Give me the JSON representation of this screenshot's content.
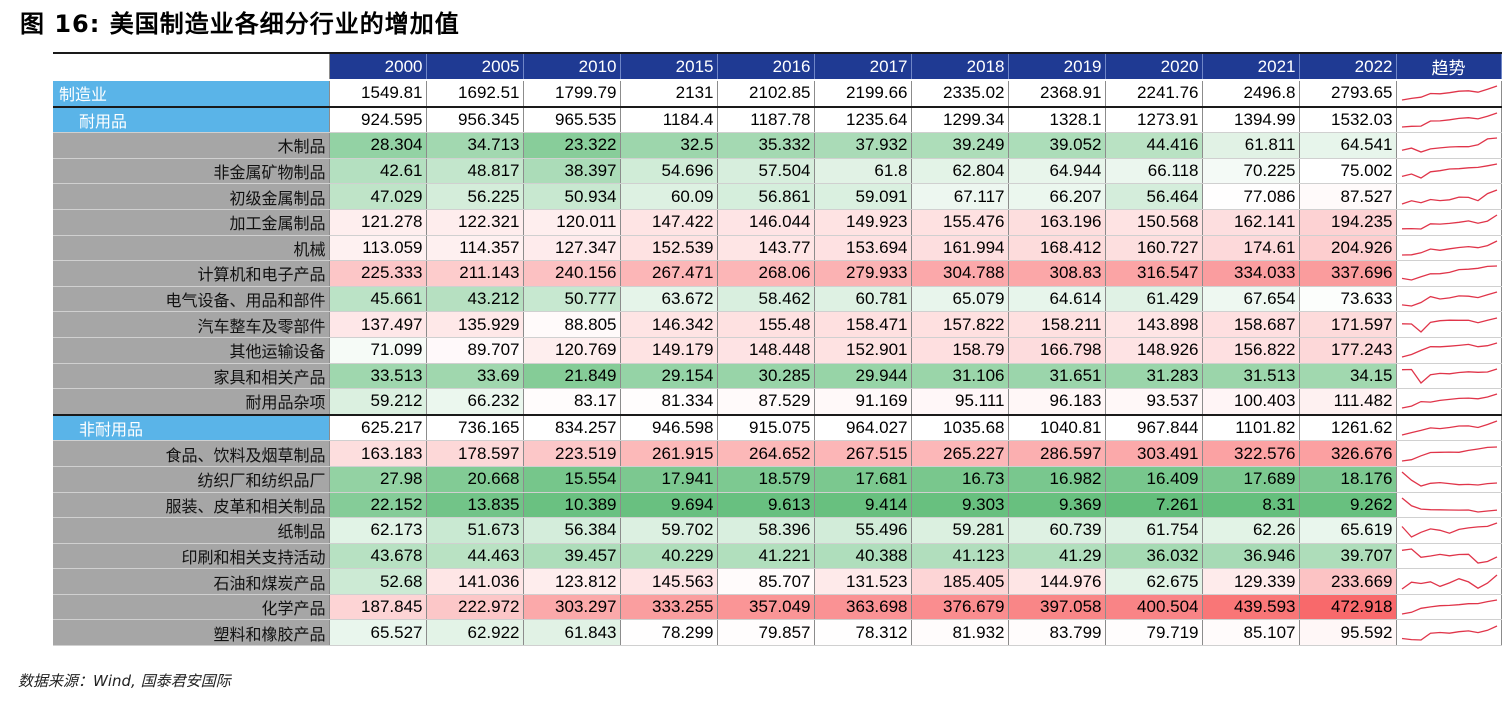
{
  "title": "图 16: 美国制造业各细分行业的增加值",
  "source": "数据来源：Wind, 国泰君安国际",
  "chart_data": {
    "type": "table",
    "columns": [
      "2000",
      "2005",
      "2010",
      "2015",
      "2016",
      "2017",
      "2018",
      "2019",
      "2020",
      "2021",
      "2022"
    ],
    "trend_header": "趋势",
    "sparkline_color": "#e0354a",
    "heat_colors": {
      "low": "#63be7b",
      "mid": "#ffffff",
      "high": "#f8696b"
    },
    "rows": [
      {
        "label": "制造业",
        "level": "sector1",
        "values": [
          "1549.81",
          "1692.51",
          "1799.79",
          "2131",
          "2102.85",
          "2199.66",
          "2335.02",
          "2368.91",
          "2241.76",
          "2496.8",
          "2793.65"
        ]
      },
      {
        "label": "耐用品",
        "level": "sector2",
        "values": [
          "924.595",
          "956.345",
          "965.535",
          "1184.4",
          "1187.78",
          "1235.64",
          "1299.34",
          "1328.1",
          "1273.91",
          "1394.99",
          "1532.03"
        ]
      },
      {
        "label": "木制品",
        "level": "sub",
        "values": [
          "28.304",
          "34.713",
          "23.322",
          "32.5",
          "35.332",
          "37.932",
          "39.249",
          "39.052",
          "44.416",
          "61.811",
          "64.541"
        ]
      },
      {
        "label": "非金属矿物制品",
        "level": "sub",
        "values": [
          "42.61",
          "48.817",
          "38.397",
          "54.696",
          "57.504",
          "61.8",
          "62.804",
          "64.944",
          "66.118",
          "70.225",
          "75.002"
        ]
      },
      {
        "label": "初级金属制品",
        "level": "sub",
        "values": [
          "47.029",
          "56.225",
          "50.934",
          "60.09",
          "56.861",
          "59.091",
          "67.117",
          "66.207",
          "56.464",
          "77.086",
          "87.527"
        ]
      },
      {
        "label": "加工金属制品",
        "level": "sub",
        "values": [
          "121.278",
          "122.321",
          "120.011",
          "147.422",
          "146.044",
          "149.923",
          "155.476",
          "163.196",
          "150.568",
          "162.141",
          "194.235"
        ]
      },
      {
        "label": "机械",
        "level": "sub",
        "values": [
          "113.059",
          "114.357",
          "127.347",
          "152.539",
          "143.77",
          "153.694",
          "161.994",
          "168.412",
          "160.727",
          "174.61",
          "204.926"
        ]
      },
      {
        "label": "计算机和电子产品",
        "level": "sub",
        "values": [
          "225.333",
          "211.143",
          "240.156",
          "267.471",
          "268.06",
          "279.933",
          "304.788",
          "308.83",
          "316.547",
          "334.033",
          "337.696"
        ]
      },
      {
        "label": "电气设备、用品和部件",
        "level": "sub",
        "values": [
          "45.661",
          "43.212",
          "50.777",
          "63.672",
          "58.462",
          "60.781",
          "65.079",
          "64.614",
          "61.429",
          "67.654",
          "73.633"
        ]
      },
      {
        "label": "汽车整车及零部件",
        "level": "sub",
        "values": [
          "137.497",
          "135.929",
          "88.805",
          "146.342",
          "155.48",
          "158.471",
          "157.822",
          "158.211",
          "143.898",
          "158.687",
          "171.597"
        ]
      },
      {
        "label": "其他运输设备",
        "level": "sub",
        "values": [
          "71.099",
          "89.707",
          "120.769",
          "149.179",
          "148.448",
          "152.901",
          "158.79",
          "166.798",
          "148.926",
          "156.822",
          "177.243"
        ]
      },
      {
        "label": "家具和相关产品",
        "level": "sub",
        "values": [
          "33.513",
          "33.69",
          "21.849",
          "29.154",
          "30.285",
          "29.944",
          "31.106",
          "31.651",
          "31.283",
          "31.513",
          "34.15"
        ]
      },
      {
        "label": "耐用品杂项",
        "level": "sub",
        "values": [
          "59.212",
          "66.232",
          "83.17",
          "81.334",
          "87.529",
          "91.169",
          "95.111",
          "96.183",
          "93.537",
          "100.403",
          "111.482"
        ]
      },
      {
        "label": "非耐用品",
        "level": "sector2",
        "values": [
          "625.217",
          "736.165",
          "834.257",
          "946.598",
          "915.075",
          "964.027",
          "1035.68",
          "1040.81",
          "967.844",
          "1101.82",
          "1261.62"
        ]
      },
      {
        "label": "食品、饮料及烟草制品",
        "level": "sub",
        "values": [
          "163.183",
          "178.597",
          "223.519",
          "261.915",
          "264.652",
          "267.515",
          "265.227",
          "286.597",
          "303.491",
          "322.576",
          "326.676"
        ]
      },
      {
        "label": "纺织厂和纺织品厂",
        "level": "sub",
        "values": [
          "27.98",
          "20.668",
          "15.554",
          "17.941",
          "18.579",
          "17.681",
          "16.73",
          "16.982",
          "16.409",
          "17.689",
          "18.176"
        ]
      },
      {
        "label": "服装、皮革和相关制品",
        "level": "sub",
        "values": [
          "22.152",
          "13.835",
          "10.389",
          "9.694",
          "9.613",
          "9.414",
          "9.303",
          "9.369",
          "7.261",
          "8.31",
          "9.262"
        ]
      },
      {
        "label": "纸制品",
        "level": "sub",
        "values": [
          "62.173",
          "51.673",
          "56.384",
          "59.702",
          "58.396",
          "55.496",
          "59.281",
          "60.739",
          "61.754",
          "62.26",
          "65.619"
        ]
      },
      {
        "label": "印刷和相关支持活动",
        "level": "sub",
        "values": [
          "43.678",
          "44.463",
          "39.457",
          "40.229",
          "41.221",
          "40.388",
          "41.123",
          "41.29",
          "36.032",
          "36.946",
          "39.707"
        ]
      },
      {
        "label": "石油和煤炭产品",
        "level": "sub",
        "values": [
          "52.68",
          "141.036",
          "123.812",
          "145.563",
          "85.707",
          "131.523",
          "185.405",
          "144.976",
          "62.675",
          "129.339",
          "233.669"
        ]
      },
      {
        "label": "化学产品",
        "level": "sub",
        "values": [
          "187.845",
          "222.972",
          "303.297",
          "333.255",
          "357.049",
          "363.698",
          "376.679",
          "397.058",
          "400.504",
          "439.593",
          "472.918"
        ]
      },
      {
        "label": "塑料和橡胶产品",
        "level": "sub",
        "values": [
          "65.527",
          "62.922",
          "61.843",
          "78.299",
          "79.857",
          "78.312",
          "81.932",
          "83.799",
          "79.719",
          "85.107",
          "95.592"
        ]
      }
    ]
  }
}
